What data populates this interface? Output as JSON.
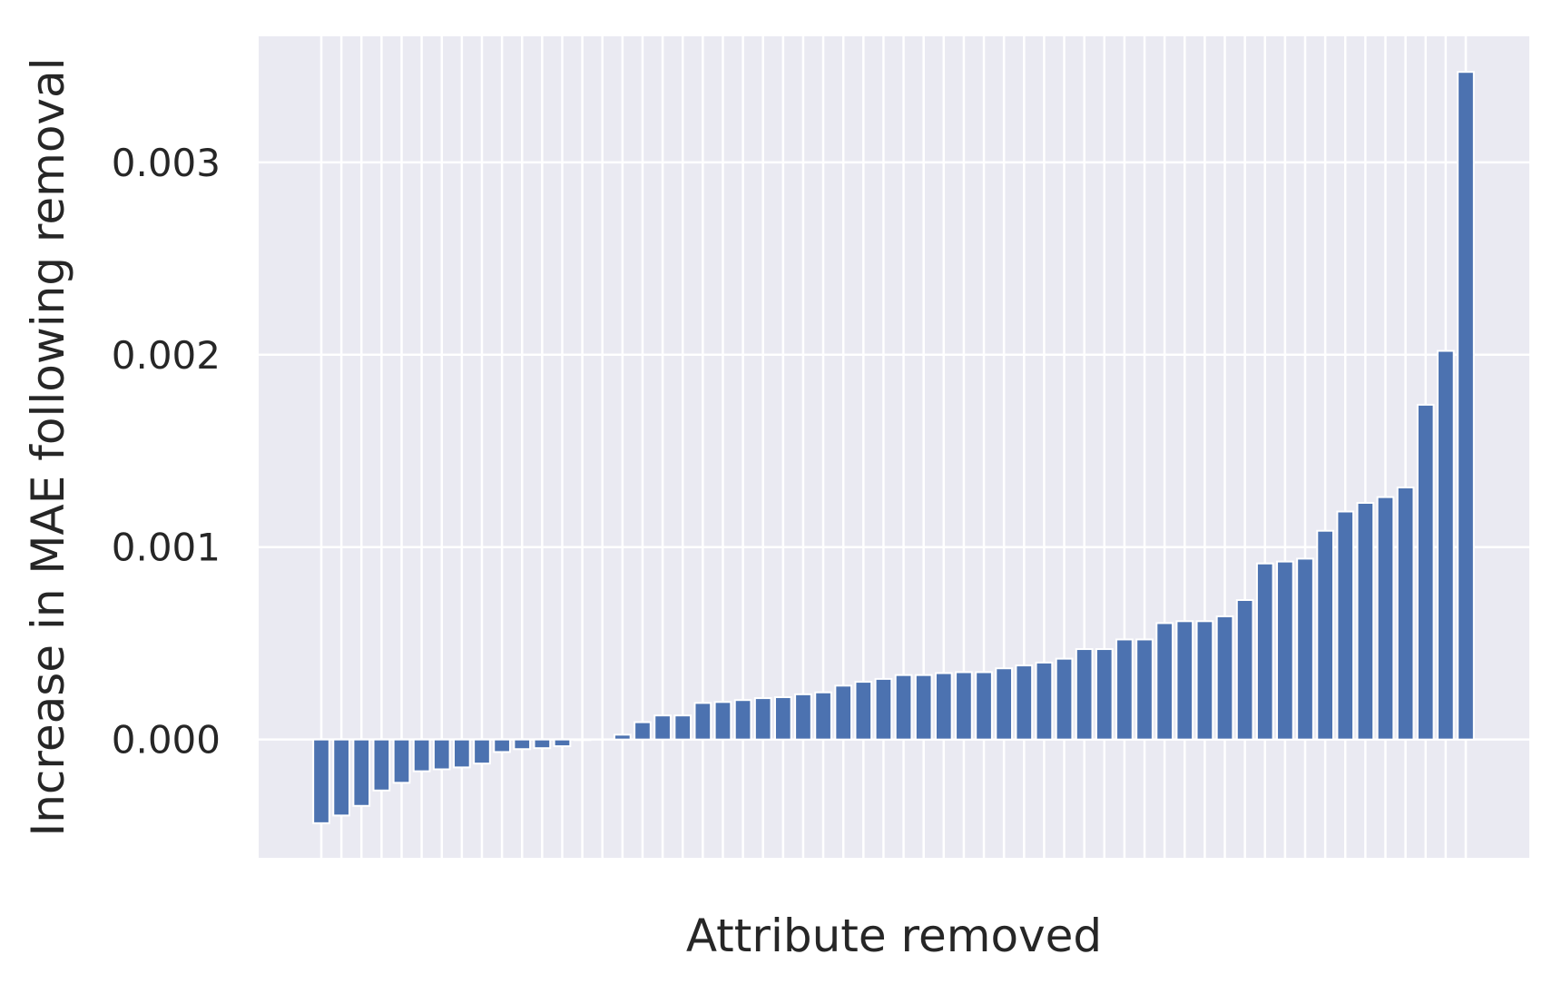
{
  "chart_data": {
    "type": "bar",
    "title": "",
    "xlabel": "Attribute removed",
    "ylabel": "Increase in MAE following removal",
    "ylim": [
      -0.000615,
      0.003655
    ],
    "yticks": [
      "0.000",
      "0.001",
      "0.002",
      "0.003"
    ],
    "ytick_values": [
      0.0,
      0.001,
      0.002,
      0.003
    ],
    "grid": true,
    "legend": "none",
    "colors": {
      "bar": "#4c72b0",
      "plot_background": "#eaeaf2",
      "grid": "#ffffff",
      "text": "#262626"
    },
    "values": [
      -0.000435,
      -0.000395,
      -0.000345,
      -0.000265,
      -0.000225,
      -0.000165,
      -0.000155,
      -0.000145,
      -0.000125,
      -6.5e-05,
      -5e-05,
      -4.5e-05,
      -3.5e-05,
      -3e-06,
      0.0,
      2.5e-05,
      9e-05,
      0.000125,
      0.000125,
      0.00019,
      0.000195,
      0.000205,
      0.000215,
      0.00022,
      0.000235,
      0.000245,
      0.00028,
      0.0003,
      0.000315,
      0.000335,
      0.000335,
      0.000345,
      0.00035,
      0.00035,
      0.00037,
      0.000385,
      0.0004,
      0.00042,
      0.00047,
      0.00047,
      0.00052,
      0.00052,
      0.000605,
      0.000615,
      0.000615,
      0.00064,
      0.000725,
      0.000915,
      0.000925,
      0.00094,
      0.001085,
      0.001185,
      0.00123,
      0.00126,
      0.00131,
      0.00174,
      0.00202,
      0.00347
    ]
  }
}
